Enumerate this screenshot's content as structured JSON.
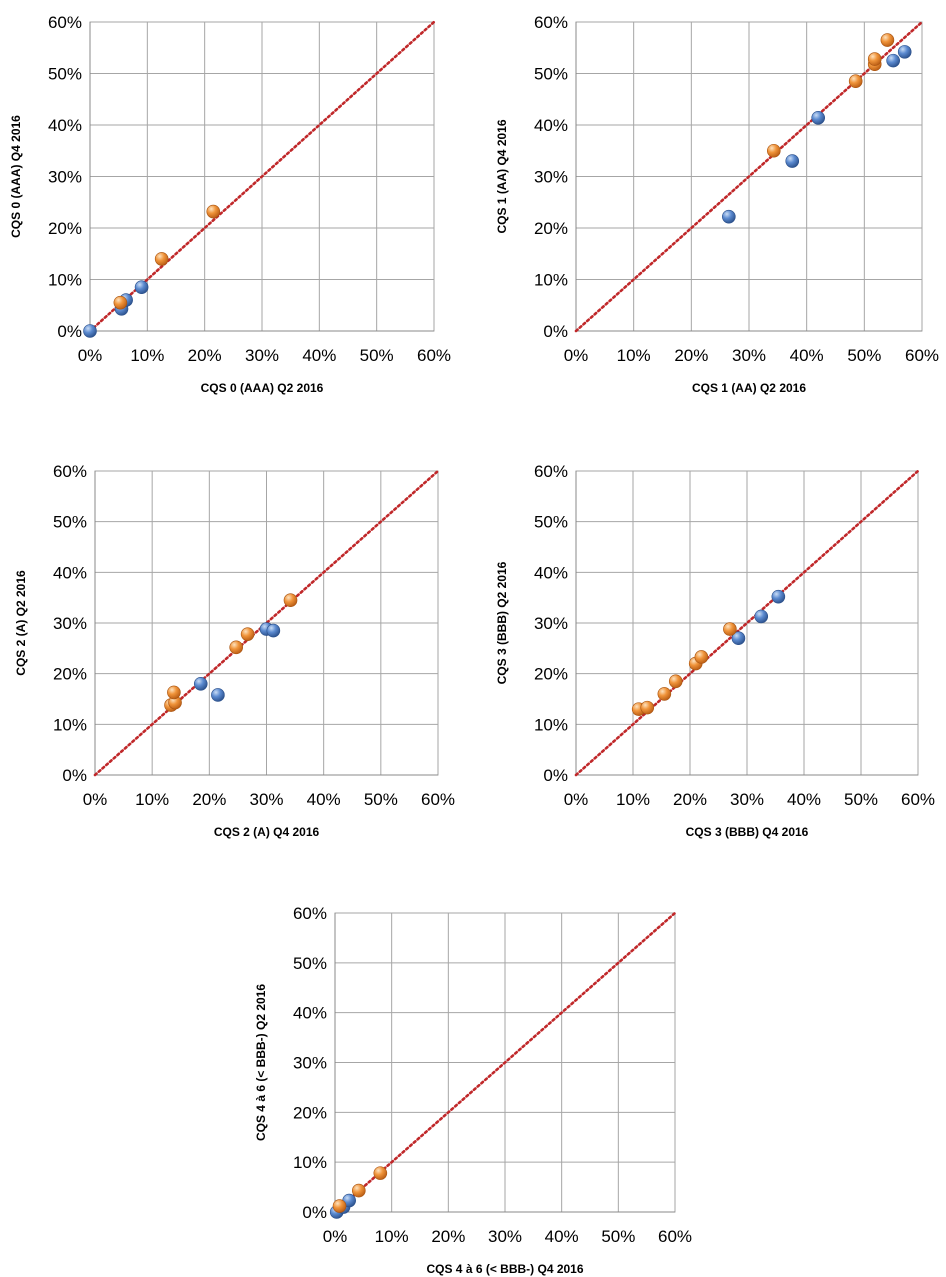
{
  "colors": {
    "series_blue": "#4a78b8",
    "series_orange": "#e8892e",
    "diagonal": "#c0282a",
    "grid": "#a6a6a6"
  },
  "chart_data": [
    {
      "type": "scatter",
      "title": "",
      "xlabel": "CQS 0 (AAA) Q2 2016",
      "ylabel": "CQS 0 (AAA) Q4 2016",
      "xlim": [
        0,
        60
      ],
      "ylim": [
        0,
        60
      ],
      "tick_labels": [
        "0%",
        "10%",
        "20%",
        "30%",
        "40%",
        "50%",
        "60%"
      ],
      "grid": true,
      "reference_line": "y = x",
      "series": [
        {
          "color": "blue",
          "points": [
            [
              0,
              0
            ],
            [
              5.5,
              4.3
            ],
            [
              6.3,
              6.0
            ],
            [
              9.0,
              8.5
            ]
          ]
        },
        {
          "color": "orange",
          "points": [
            [
              5.3,
              5.5
            ],
            [
              12.5,
              14.0
            ],
            [
              21.5,
              23.2
            ]
          ]
        }
      ]
    },
    {
      "type": "scatter",
      "title": "",
      "xlabel": "CQS 1 (AA) Q2 2016",
      "ylabel": "CQS 1 (AA) Q4 2016",
      "xlim": [
        0,
        60
      ],
      "ylim": [
        0,
        60
      ],
      "tick_labels": [
        "0%",
        "10%",
        "20%",
        "30%",
        "40%",
        "50%",
        "60%"
      ],
      "grid": true,
      "reference_line": "y = x",
      "series": [
        {
          "color": "blue",
          "points": [
            [
              26.5,
              22.2
            ],
            [
              37.5,
              33.0
            ],
            [
              42.0,
              41.4
            ],
            [
              55.0,
              52.5
            ],
            [
              57.0,
              54.2
            ]
          ]
        },
        {
          "color": "orange",
          "points": [
            [
              34.3,
              35.0
            ],
            [
              48.5,
              48.5
            ],
            [
              51.8,
              51.8
            ],
            [
              51.8,
              52.8
            ],
            [
              54.0,
              56.5
            ]
          ]
        }
      ]
    },
    {
      "type": "scatter",
      "title": "",
      "xlabel": "CQS 2 (A) Q4 2016",
      "ylabel": "CQS 2 (A) Q2 2016",
      "xlim": [
        0,
        60
      ],
      "ylim": [
        0,
        60
      ],
      "tick_labels": [
        "0%",
        "10%",
        "20%",
        "30%",
        "40%",
        "50%",
        "60%"
      ],
      "grid": true,
      "reference_line": "y = x",
      "series": [
        {
          "color": "blue",
          "points": [
            [
              18.5,
              18.0
            ],
            [
              21.5,
              15.8
            ],
            [
              30.0,
              28.8
            ],
            [
              31.2,
              28.5
            ]
          ]
        },
        {
          "color": "orange",
          "points": [
            [
              13.3,
              13.8
            ],
            [
              14.0,
              14.3
            ],
            [
              13.8,
              16.3
            ],
            [
              24.7,
              25.2
            ],
            [
              26.7,
              27.8
            ],
            [
              34.2,
              34.5
            ]
          ]
        }
      ]
    },
    {
      "type": "scatter",
      "title": "",
      "xlabel": "CQS 3 (BBB) Q4 2016",
      "ylabel": "CQS 3 (BBB) Q2 2016",
      "xlim": [
        0,
        60
      ],
      "ylim": [
        0,
        60
      ],
      "tick_labels": [
        "0%",
        "10%",
        "20%",
        "30%",
        "40%",
        "50%",
        "60%"
      ],
      "grid": true,
      "reference_line": "y = x",
      "series": [
        {
          "color": "blue",
          "points": [
            [
              28.5,
              27.0
            ],
            [
              32.5,
              31.3
            ],
            [
              35.5,
              35.2
            ]
          ]
        },
        {
          "color": "orange",
          "points": [
            [
              11.0,
              13.0
            ],
            [
              12.5,
              13.3
            ],
            [
              15.5,
              16.0
            ],
            [
              17.5,
              18.5
            ],
            [
              21.0,
              22.0
            ],
            [
              22.0,
              23.3
            ],
            [
              27.0,
              28.8
            ]
          ]
        }
      ]
    },
    {
      "type": "scatter",
      "title": "",
      "xlabel": "CQS 4 à 6 (< BBB-) Q4 2016",
      "ylabel": "CQS 4 à 6 (< BBB-) Q2 2016",
      "xlim": [
        0,
        60
      ],
      "ylim": [
        0,
        60
      ],
      "tick_labels": [
        "0%",
        "10%",
        "20%",
        "30%",
        "40%",
        "50%",
        "60%"
      ],
      "grid": true,
      "reference_line": "y = x",
      "series": [
        {
          "color": "blue",
          "points": [
            [
              0.3,
              0.0
            ],
            [
              1.5,
              1.0
            ],
            [
              2.5,
              2.3
            ]
          ]
        },
        {
          "color": "orange",
          "points": [
            [
              0.8,
              1.2
            ],
            [
              4.2,
              4.3
            ],
            [
              8.0,
              7.8
            ]
          ]
        }
      ]
    }
  ]
}
